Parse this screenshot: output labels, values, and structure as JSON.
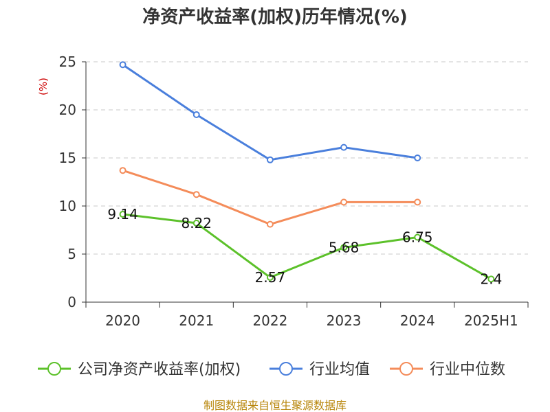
{
  "chart_data": {
    "type": "line",
    "title": "净资产收益率(加权)历年情况(%)",
    "ylabel": "(%)",
    "categories": [
      "2020",
      "2021",
      "2022",
      "2023",
      "2024",
      "2025H1"
    ],
    "ylim": [
      0,
      25
    ],
    "yticks": [
      0,
      5,
      10,
      15,
      20,
      25
    ],
    "grid": true,
    "legend_position": "bottom",
    "series": [
      {
        "name": "公司净资产收益率(加权)",
        "color": "#5cc12a",
        "values": [
          9.14,
          8.22,
          2.57,
          5.68,
          6.75,
          2.4
        ],
        "labels": [
          "9.14",
          "8.22",
          "2.57",
          "5.68",
          "6.75",
          "2.4"
        ]
      },
      {
        "name": "行业均值",
        "color": "#4a7fdc",
        "values": [
          24.7,
          19.5,
          14.8,
          16.1,
          15.0,
          null
        ]
      },
      {
        "name": "行业中位数",
        "color": "#f48c5a",
        "values": [
          13.7,
          11.2,
          8.1,
          10.4,
          10.4,
          null
        ]
      }
    ]
  },
  "footer": {
    "source": "制图数据来自恒生聚源数据库"
  }
}
